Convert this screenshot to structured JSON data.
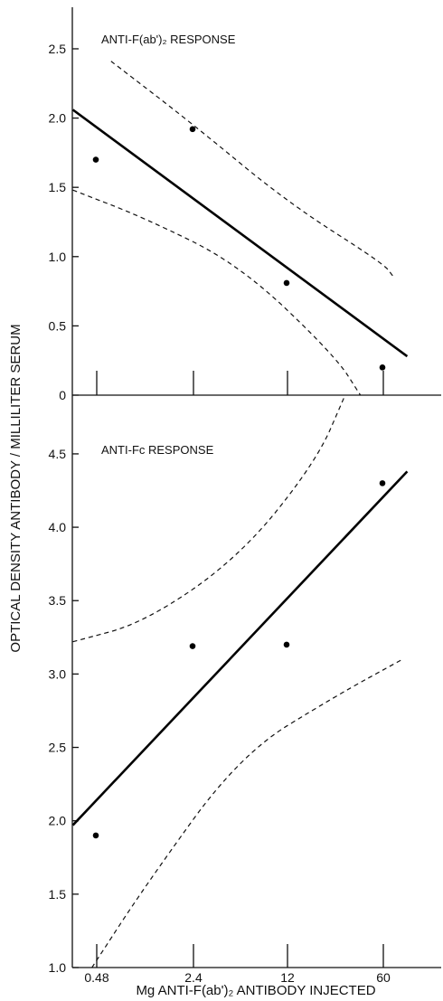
{
  "chart_data": [
    {
      "type": "scatter",
      "title": "ANTI-F(ab')₂ RESPONSE",
      "categories": [
        "0.48",
        "2.4",
        "12",
        "60"
      ],
      "ylim": [
        0,
        2.8
      ],
      "yticks": [
        0,
        0.5,
        1.0,
        1.5,
        2.0,
        2.5
      ],
      "ytick_labels": [
        "0",
        "0.5",
        "1.0",
        "1.5",
        "2.0",
        "2.5"
      ],
      "points": [
        {
          "x": "0.48",
          "y": 1.7
        },
        {
          "x": "2.4",
          "y": 1.92
        },
        {
          "x": "12",
          "y": 0.81
        },
        {
          "x": "60",
          "y": 0.2
        }
      ],
      "fit_line": {
        "x_index": [
          -0.25,
          3.25
        ],
        "y": [
          2.06,
          0.28
        ]
      },
      "confidence_band": {
        "upper": [
          [
            0.15,
            2.41
          ],
          [
            1.0,
            1.96
          ],
          [
            2.0,
            1.39
          ],
          [
            3.0,
            0.95
          ],
          [
            3.1,
            0.86
          ]
        ],
        "lower": [
          [
            -0.25,
            1.48
          ],
          [
            0.5,
            1.28
          ],
          [
            1.5,
            0.94
          ],
          [
            2.5,
            0.28
          ],
          [
            2.76,
            0.0
          ]
        ]
      }
    },
    {
      "type": "scatter",
      "title": "ANTI-Fc RESPONSE",
      "categories": [
        "0.48",
        "2.4",
        "12",
        "60"
      ],
      "ylim": [
        1.0,
        4.9
      ],
      "yticks": [
        1.0,
        1.5,
        2.0,
        2.5,
        3.0,
        3.5,
        4.0,
        4.5
      ],
      "ytick_labels": [
        "1.0",
        "1.5",
        "2.0",
        "2.5",
        "3.0",
        "3.5",
        "4.0",
        "4.5"
      ],
      "points": [
        {
          "x": "0.48",
          "y": 1.9
        },
        {
          "x": "2.4",
          "y": 3.19
        },
        {
          "x": "12",
          "y": 3.2
        },
        {
          "x": "60",
          "y": 4.3
        }
      ],
      "fit_line": {
        "x_index": [
          -0.25,
          3.25
        ],
        "y": [
          1.97,
          4.38
        ]
      },
      "confidence_band": {
        "upper": [
          [
            -0.25,
            3.22
          ],
          [
            0.5,
            3.35
          ],
          [
            1.5,
            3.8
          ],
          [
            2.3,
            4.45
          ],
          [
            2.6,
            4.9
          ]
        ],
        "lower": [
          [
            -0.05,
            1.0
          ],
          [
            0.5,
            1.55
          ],
          [
            1.5,
            2.45
          ],
          [
            2.5,
            2.85
          ],
          [
            3.2,
            3.1
          ]
        ]
      }
    }
  ],
  "axes": {
    "y_label": "OPTICAL DENSITY ANTIBODY / MILLILITER SERUM",
    "x_label": "Mg ANTI-F(ab')₂ ANTIBODY INJECTED",
    "x_tick_labels": [
      "0.48",
      "2.4",
      "12",
      "60"
    ]
  }
}
